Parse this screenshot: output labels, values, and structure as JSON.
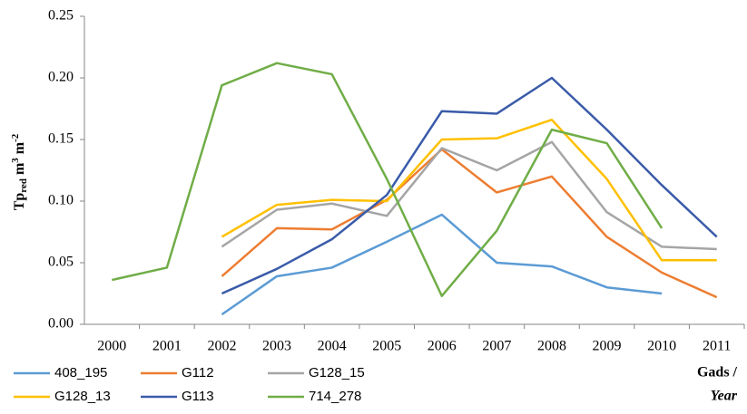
{
  "chart_data": {
    "type": "line",
    "ylabel": [
      "Tp",
      "red",
      " m",
      "3",
      " m",
      "-2"
    ],
    "xlabel": [
      "Gads /",
      "Year"
    ],
    "categories": [
      "2000",
      "2001",
      "2002",
      "2003",
      "2004",
      "2005",
      "2006",
      "2007",
      "2008",
      "2009",
      "2010",
      "2011"
    ],
    "ylim": [
      0,
      0.25
    ],
    "yticks": [
      {
        "value": 0,
        "label": "0.00"
      },
      {
        "value": 0.05,
        "label": "0.05"
      },
      {
        "value": 0.1,
        "label": "0.10"
      },
      {
        "value": 0.15,
        "label": "0.15"
      },
      {
        "value": 0.2,
        "label": "0.20"
      },
      {
        "value": 0.25,
        "label": "0.25"
      }
    ],
    "grid": false,
    "series": [
      {
        "name": "408_195",
        "color": "#5b9bd5",
        "values": [
          null,
          null,
          0.008,
          0.039,
          0.046,
          0.067,
          0.089,
          0.05,
          0.047,
          0.03,
          0.025,
          null
        ]
      },
      {
        "name": "G112",
        "color": "#ed7d31",
        "values": [
          null,
          null,
          0.039,
          0.078,
          0.077,
          0.101,
          0.142,
          0.107,
          0.12,
          0.071,
          0.042,
          0.022
        ]
      },
      {
        "name": "G128_15",
        "color": "#a5a5a5",
        "values": [
          null,
          null,
          0.063,
          0.093,
          0.098,
          0.088,
          0.143,
          0.125,
          0.148,
          0.091,
          0.063,
          0.061
        ]
      },
      {
        "name": "G128_13",
        "color": "#ffc000",
        "values": [
          null,
          null,
          0.071,
          0.097,
          0.101,
          0.1,
          0.15,
          0.151,
          0.166,
          0.118,
          0.052,
          0.052
        ]
      },
      {
        "name": "G113",
        "color": "#3a5ba9",
        "values": [
          null,
          null,
          0.025,
          0.045,
          0.069,
          0.105,
          0.173,
          0.171,
          0.2,
          0.158,
          0.113,
          0.071
        ]
      },
      {
        "name": "714_278",
        "color": "#70ad47",
        "values": [
          0.036,
          0.046,
          0.194,
          0.212,
          0.203,
          0.118,
          0.023,
          0.076,
          0.158,
          0.147,
          0.078,
          null
        ]
      }
    ]
  }
}
